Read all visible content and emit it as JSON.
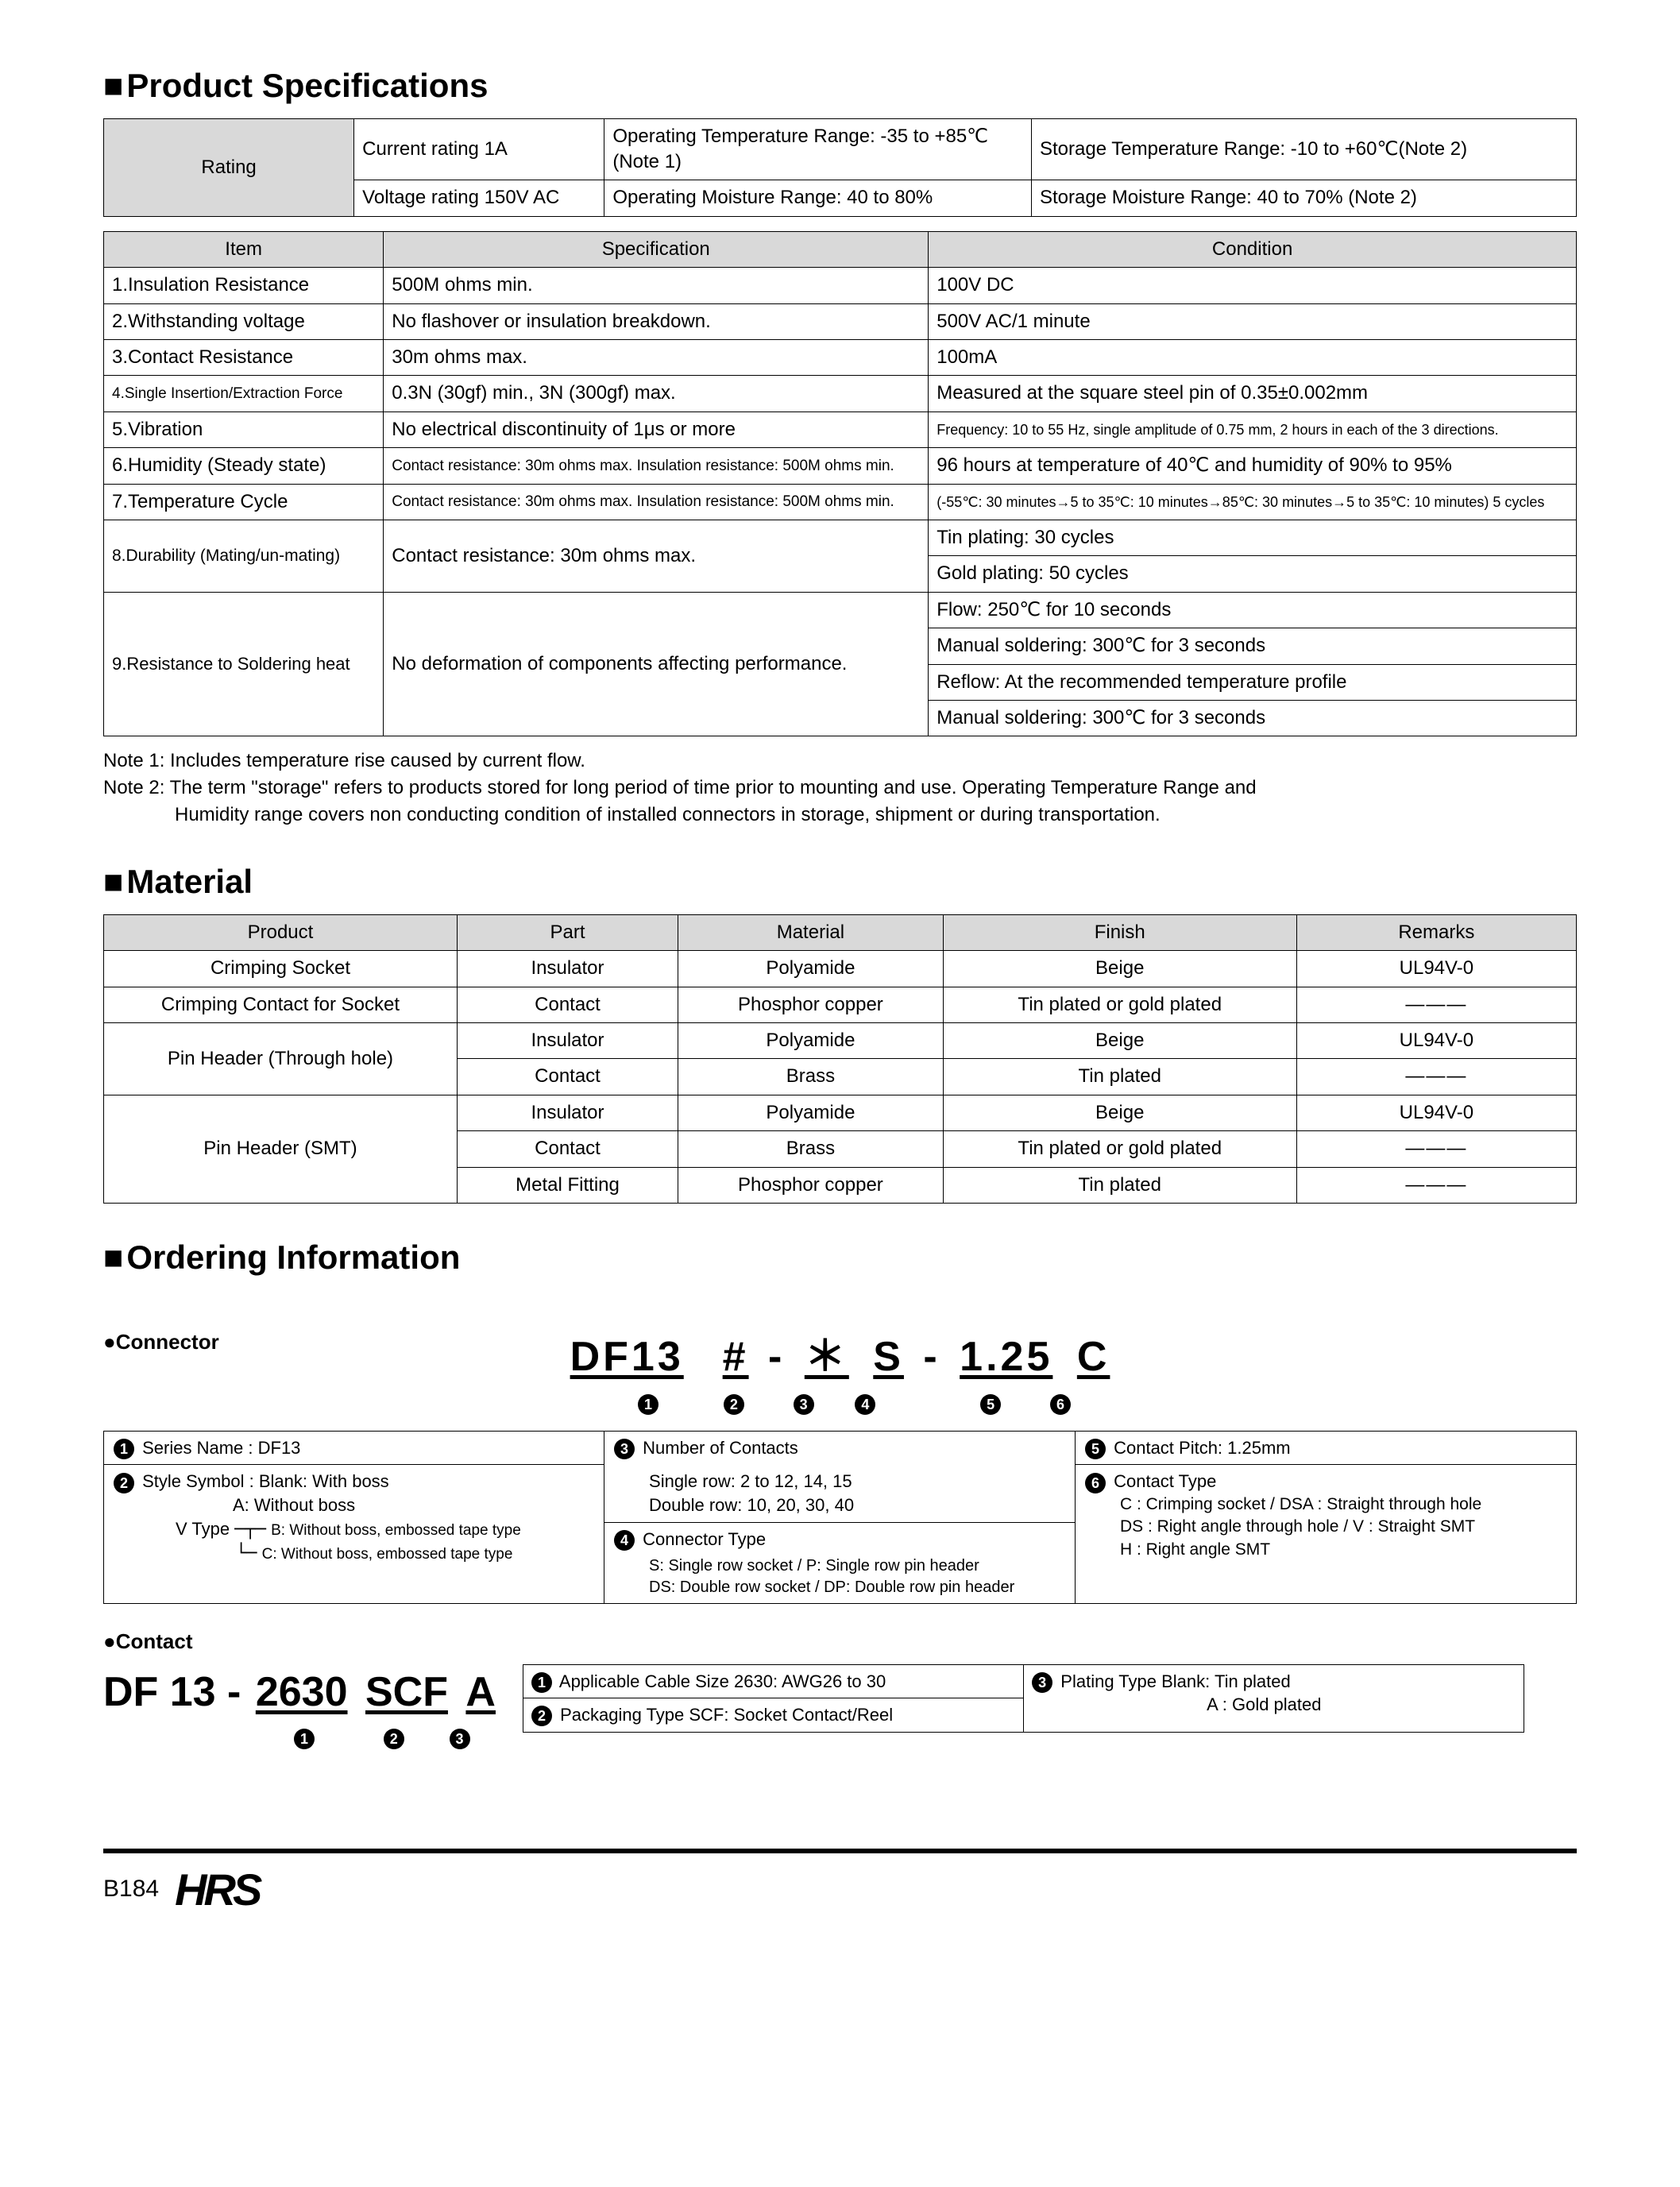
{
  "colors": {
    "header_bg": "#d9d9d9",
    "text": "#000000",
    "bg": "#ffffff",
    "border": "#000000"
  },
  "sections": {
    "prodspec_title": "Product Specifications",
    "material_title": "Material",
    "ordering_title": "Ordering Information"
  },
  "rating": {
    "header": "Rating",
    "current": "Current rating  1A",
    "voltage": "Voltage rating  150V AC",
    "op_temp": "Operating Temperature Range: -35 to +85℃ (Note 1)",
    "op_moist": "Operating Moisture Range: 40 to 80%",
    "st_temp": "Storage Temperature Range: -10 to +60℃(Note 2)",
    "st_moist": "Storage Moisture Range: 40 to 70%        (Note 2)"
  },
  "spec_headers": {
    "item": "Item",
    "spec": "Specification",
    "cond": "Condition"
  },
  "specs": [
    {
      "item": "1.Insulation Resistance",
      "spec": "500M ohms min.",
      "cond": "100V DC"
    },
    {
      "item": "2.Withstanding voltage",
      "spec": "No flashover or insulation breakdown.",
      "cond": "500V AC/1 minute"
    },
    {
      "item": "3.Contact Resistance",
      "spec": "30m ohms max.",
      "cond": "100mA"
    },
    {
      "item": "4.Single Insertion/Extraction Force",
      "spec": "0.3N (30gf) min., 3N (300gf) max.",
      "cond": "Measured at the square steel pin of 0.35±0.002mm",
      "small_item": true
    },
    {
      "item": "5.Vibration",
      "spec": "No electrical discontinuity of 1μs or more",
      "cond": "Frequency: 10 to 55 Hz, single amplitude of 0.75 mm, 2 hours in each of the 3 directions.",
      "small_cond": true
    },
    {
      "item": "6.Humidity (Steady state)",
      "spec": "Contact resistance: 30m ohms max. Insulation resistance: 500M ohms min.",
      "cond": "96 hours at temperature of 40℃ and humidity of 90% to 95%",
      "small_spec": true
    },
    {
      "item": "7.Temperature Cycle",
      "spec": "Contact resistance: 30m ohms max. Insulation resistance: 500M ohms min.",
      "cond": "(-55℃: 30 minutes→5 to 35℃: 10 minutes→85℃: 30 minutes→5 to 35℃: 10 minutes) 5 cycles",
      "small_spec": true,
      "small_cond": true
    }
  ],
  "spec8": {
    "item": "8.Durability (Mating/un-mating)",
    "spec": "Contact resistance: 30m ohms max.",
    "cond1": "Tin plating: 30 cycles",
    "cond2": "Gold plating: 50 cycles"
  },
  "spec9": {
    "item": "9.Resistance to Soldering heat",
    "spec": "No deformation of components affecting performance.",
    "cond1": "Flow: 250℃ for 10 seconds",
    "cond2": "Manual soldering: 300℃ for 3 seconds",
    "cond3": "Reflow: At the recommended temperature profile",
    "cond4": "Manual soldering: 300℃ for 3 seconds"
  },
  "notes": {
    "n1": "Note 1: Includes temperature rise caused by current flow.",
    "n2a": "Note 2: The term \"storage\" refers to products stored for long period of time prior to mounting and use. Operating Temperature Range and",
    "n2b": "Humidity range covers non conducting condition of installed connectors in storage, shipment or during transportation."
  },
  "mat_headers": {
    "product": "Product",
    "part": "Part",
    "material": "Material",
    "finish": "Finish",
    "remarks": "Remarks"
  },
  "material_rows": {
    "r1": {
      "product": "Crimping Socket",
      "part": "Insulator",
      "material": "Polyamide",
      "finish": "Beige",
      "remarks": "UL94V-0"
    },
    "r2": {
      "product": "Crimping Contact for Socket",
      "part": "Contact",
      "material": "Phosphor copper",
      "finish": "Tin plated or gold plated",
      "remarks": "———"
    },
    "r3": {
      "product": "Pin Header (Through hole)",
      "part": "Insulator",
      "material": "Polyamide",
      "finish": "Beige",
      "remarks": "UL94V-0"
    },
    "r4": {
      "part": "Contact",
      "material": "Brass",
      "finish": "Tin plated",
      "remarks": "———"
    },
    "r5": {
      "product": "Pin Header (SMT)",
      "part": "Insulator",
      "material": "Polyamide",
      "finish": "Beige",
      "remarks": "UL94V-0"
    },
    "r6": {
      "part": "Contact",
      "material": "Brass",
      "finish": "Tin plated or gold plated",
      "remarks": "———"
    },
    "r7": {
      "part": "Metal Fitting",
      "material": "Phosphor copper",
      "finish": "Tin plated",
      "remarks": "———"
    }
  },
  "connector_sub": "Connector",
  "connector_code": {
    "p1": "DF13",
    "p2": "#",
    "p3": "＊",
    "p4": "S",
    "p5": "1.25",
    "p6": "C"
  },
  "conn_desc": {
    "l1": "Series Name      : DF13",
    "l2": "Style Symbol     : Blank: With boss",
    "l3": "A: Without boss",
    "l4pre": "V Type",
    "l4a": "B: Without boss, embossed tape type",
    "l4b": "C: Without boss, embossed tape type",
    "c2a": "Number of Contacts",
    "c2b": "Single row: 2 to 12, 14, 15",
    "c2c": "Double row: 10, 20, 30, 40",
    "c2d": "Connector Type",
    "c2e": "S: Single row socket / P: Single row pin header",
    "c2f": "DS: Double row socket / DP: Double row pin header",
    "c3a": "Contact Pitch: 1.25mm",
    "c3b": "Contact Type",
    "c3c": "C : Crimping socket / DSA : Straight through hole",
    "c3d": "DS : Right angle through hole / V : Straight SMT",
    "c3e": "H : Right angle SMT"
  },
  "contact_sub": "Contact",
  "contact_code": {
    "pre": "DF 13",
    "p1": "2630",
    "p2": "SCF",
    "p3": "A"
  },
  "contact_desc": {
    "a": "Applicable Cable Size  2630: AWG26 to 30",
    "b": "Packaging Type  SCF: Socket Contact/Reel",
    "c": "Plating Type    Blank: Tin plated",
    "d": "A   : Gold plated"
  },
  "footer": {
    "page": "B184",
    "logo": "HRS"
  }
}
